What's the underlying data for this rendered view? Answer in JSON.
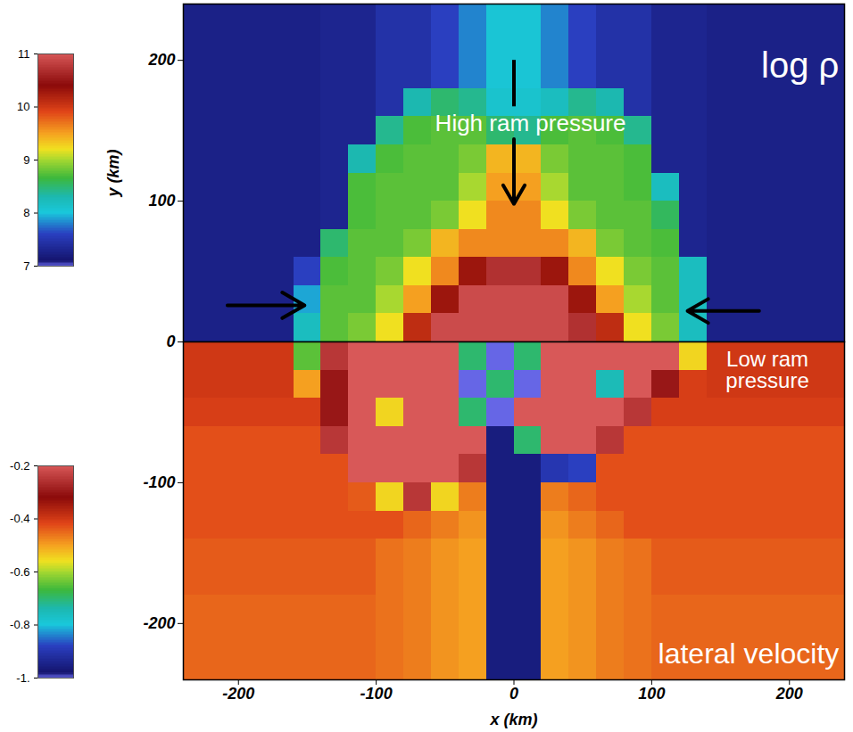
{
  "chart_data": [
    {
      "type": "heatmap",
      "annotations": [
        "log ρ",
        "High ram pressure"
      ],
      "ylabel": "y (km)",
      "xlim": [
        -240,
        240
      ],
      "ylim": [
        0,
        240
      ],
      "yticks": [
        0,
        100,
        200
      ],
      "tick_labels": "y",
      "x_edges": [
        -240,
        -220,
        -200,
        -180,
        -160,
        -140,
        -120,
        -100,
        -80,
        -60,
        -40,
        -20,
        0,
        20,
        40,
        60,
        80,
        100,
        120,
        140,
        160,
        180,
        200,
        220,
        240
      ],
      "y_edges": [
        0,
        20,
        40,
        60,
        80,
        100,
        120,
        140,
        160,
        180,
        200,
        220,
        240
      ],
      "values": [
        [
          7.25,
          7.25,
          7.25,
          7.25,
          8.2,
          8.75,
          8.85,
          9.2,
          10.1,
          10.9,
          10.9,
          10.9,
          10.9,
          10.9,
          10.7,
          10.1,
          9.2,
          8.85,
          8.2,
          7.25,
          7.25,
          7.25,
          7.25,
          7.25
        ],
        [
          7.25,
          7.25,
          7.25,
          7.25,
          7.9,
          8.75,
          8.75,
          9.0,
          9.5,
          10.3,
          10.9,
          10.9,
          10.9,
          10.9,
          10.3,
          9.5,
          9.0,
          8.75,
          8.2,
          7.25,
          7.25,
          7.25,
          7.25,
          7.25
        ],
        [
          7.25,
          7.25,
          7.25,
          7.25,
          7.6,
          8.7,
          8.75,
          8.85,
          9.2,
          9.6,
          10.3,
          10.7,
          10.7,
          10.3,
          9.6,
          9.2,
          8.85,
          8.75,
          8.2,
          7.25,
          7.25,
          7.25,
          7.25,
          7.25
        ],
        [
          7.25,
          7.25,
          7.25,
          7.25,
          7.25,
          8.5,
          8.75,
          8.75,
          8.85,
          9.4,
          9.6,
          9.6,
          9.6,
          9.6,
          9.4,
          8.85,
          8.75,
          8.7,
          7.3,
          7.25,
          7.25,
          7.25,
          7.25,
          7.25
        ],
        [
          7.25,
          7.25,
          7.25,
          7.25,
          7.25,
          7.3,
          8.7,
          8.75,
          8.75,
          8.85,
          9.2,
          9.6,
          9.6,
          9.2,
          8.85,
          8.75,
          8.75,
          8.55,
          7.3,
          7.25,
          7.25,
          7.25,
          7.25,
          7.25
        ],
        [
          7.25,
          7.25,
          7.25,
          7.25,
          7.25,
          7.3,
          8.7,
          8.75,
          8.75,
          8.75,
          9.0,
          9.5,
          9.5,
          9.0,
          8.75,
          8.75,
          8.7,
          8.2,
          7.3,
          7.25,
          7.25,
          7.25,
          7.25,
          7.25
        ],
        [
          7.25,
          7.25,
          7.25,
          7.25,
          7.25,
          7.3,
          8.3,
          8.7,
          8.75,
          8.75,
          8.85,
          9.4,
          9.4,
          8.85,
          8.75,
          8.75,
          8.7,
          7.3,
          7.3,
          7.25,
          7.25,
          7.25,
          7.25,
          7.25
        ],
        [
          7.25,
          7.25,
          7.25,
          7.25,
          7.25,
          7.3,
          7.3,
          8.4,
          8.7,
          8.75,
          8.75,
          8.5,
          8.4,
          8.7,
          8.75,
          8.7,
          8.4,
          7.3,
          7.3,
          7.25,
          7.25,
          7.25,
          7.25,
          7.25
        ],
        [
          7.25,
          7.25,
          7.25,
          7.25,
          7.25,
          7.3,
          7.3,
          7.45,
          8.3,
          8.5,
          8.4,
          8.1,
          8.1,
          8.2,
          8.4,
          8.3,
          7.45,
          7.3,
          7.3,
          7.25,
          7.25,
          7.25,
          7.25,
          7.25
        ],
        [
          7.25,
          7.25,
          7.25,
          7.25,
          7.25,
          7.3,
          7.3,
          7.45,
          7.45,
          7.6,
          7.8,
          8.05,
          8.05,
          7.8,
          7.6,
          7.45,
          7.45,
          7.3,
          7.3,
          7.25,
          7.25,
          7.25,
          7.25,
          7.25
        ],
        [
          7.25,
          7.25,
          7.25,
          7.25,
          7.25,
          7.3,
          7.3,
          7.45,
          7.45,
          7.6,
          7.8,
          8.05,
          8.05,
          7.8,
          7.6,
          7.45,
          7.45,
          7.3,
          7.3,
          7.25,
          7.25,
          7.25,
          7.25,
          7.25
        ],
        [
          7.25,
          7.25,
          7.25,
          7.25,
          7.25,
          7.3,
          7.3,
          7.45,
          7.45,
          7.6,
          7.8,
          8.05,
          8.05,
          7.8,
          7.6,
          7.45,
          7.45,
          7.3,
          7.3,
          7.25,
          7.25,
          7.25,
          7.25,
          7.25
        ]
      ],
      "colorbar": {
        "range": [
          7,
          11
        ],
        "ticks": [
          7,
          8,
          9,
          10,
          11
        ]
      }
    },
    {
      "type": "heatmap",
      "annotations": [
        "Low ram pressure",
        "lateral velocity"
      ],
      "xlabel": "x (km)",
      "xlim": [
        -240,
        240
      ],
      "ylim": [
        -240,
        0
      ],
      "xticks": [
        -200,
        -100,
        0,
        100,
        200
      ],
      "yticks": [
        -200,
        -100
      ],
      "x_edges": [
        -240,
        -220,
        -200,
        -180,
        -160,
        -140,
        -120,
        -100,
        -80,
        -60,
        -40,
        -20,
        0,
        20,
        40,
        60,
        80,
        100,
        120,
        140,
        160,
        180,
        200,
        220,
        240
      ],
      "y_edges": [
        -240,
        -220,
        -200,
        -180,
        -160,
        -140,
        -120,
        -100,
        -80,
        -60,
        -40,
        -20,
        0
      ],
      "values": [
        [
          -0.45,
          -0.45,
          -0.45,
          -0.45,
          -0.45,
          -0.45,
          -0.45,
          -0.46,
          -0.47,
          -0.49,
          -0.5,
          -0.96,
          -0.96,
          -0.5,
          -0.49,
          -0.47,
          -0.46,
          -0.45,
          -0.45,
          -0.45,
          -0.45,
          -0.45,
          -0.45,
          -0.45
        ],
        [
          -0.45,
          -0.45,
          -0.45,
          -0.45,
          -0.45,
          -0.45,
          -0.45,
          -0.46,
          -0.47,
          -0.49,
          -0.5,
          -0.96,
          -0.96,
          -0.5,
          -0.49,
          -0.47,
          -0.46,
          -0.45,
          -0.45,
          -0.45,
          -0.45,
          -0.45,
          -0.45,
          -0.45
        ],
        [
          -0.45,
          -0.45,
          -0.45,
          -0.45,
          -0.45,
          -0.45,
          -0.45,
          -0.46,
          -0.47,
          -0.49,
          -0.5,
          -0.96,
          -0.96,
          -0.5,
          -0.49,
          -0.47,
          -0.46,
          -0.45,
          -0.45,
          -0.45,
          -0.45,
          -0.45,
          -0.45,
          -0.45
        ],
        [
          -0.44,
          -0.44,
          -0.44,
          -0.44,
          -0.44,
          -0.44,
          -0.44,
          -0.46,
          -0.47,
          -0.49,
          -0.5,
          -0.96,
          -0.96,
          -0.5,
          -0.49,
          -0.47,
          -0.46,
          -0.44,
          -0.44,
          -0.44,
          -0.44,
          -0.44,
          -0.44,
          -0.44
        ],
        [
          -0.44,
          -0.44,
          -0.44,
          -0.44,
          -0.44,
          -0.44,
          -0.44,
          -0.46,
          -0.47,
          -0.49,
          -0.5,
          -0.96,
          -0.96,
          -0.5,
          -0.49,
          -0.47,
          -0.46,
          -0.44,
          -0.44,
          -0.44,
          -0.44,
          -0.44,
          -0.44,
          -0.44
        ],
        [
          -0.43,
          -0.43,
          -0.43,
          -0.43,
          -0.43,
          -0.43,
          -0.43,
          -0.43,
          -0.45,
          -0.47,
          -0.49,
          -0.96,
          -0.96,
          -0.49,
          -0.47,
          -0.45,
          -0.43,
          -0.43,
          -0.43,
          -0.43,
          -0.43,
          -0.43,
          -0.43,
          -0.43
        ],
        [
          -0.43,
          -0.43,
          -0.43,
          -0.43,
          -0.43,
          -0.43,
          -0.44,
          -0.55,
          -0.25,
          -0.55,
          -0.47,
          -0.96,
          -0.96,
          -0.47,
          -0.45,
          -0.43,
          -0.43,
          -0.43,
          -0.43,
          -0.43,
          -0.43,
          -0.43,
          -0.43,
          -0.43
        ],
        [
          -0.43,
          -0.43,
          -0.43,
          -0.43,
          -0.43,
          -0.43,
          -0.2,
          -0.2,
          -0.2,
          -0.2,
          -0.25,
          -0.96,
          -0.96,
          -0.9,
          -0.88,
          -0.43,
          -0.43,
          -0.43,
          -0.43,
          -0.43,
          -0.43,
          -0.43,
          -0.43,
          -0.43
        ],
        [
          -0.43,
          -0.43,
          -0.43,
          -0.43,
          -0.43,
          -0.25,
          -0.2,
          -0.2,
          -0.2,
          -0.2,
          -0.2,
          -0.96,
          -0.7,
          -0.2,
          -0.2,
          -0.25,
          -0.43,
          -0.43,
          -0.43,
          -0.43,
          -0.43,
          -0.43,
          -0.43,
          -0.43
        ],
        [
          -0.41,
          -0.41,
          -0.41,
          -0.41,
          -0.41,
          -0.3,
          -0.2,
          -0.55,
          -0.2,
          -0.2,
          -0.7,
          -1,
          -0.2,
          -0.2,
          -0.2,
          -0.2,
          -0.25,
          -0.41,
          -0.41,
          -0.41,
          -0.41,
          -0.41,
          -0.41,
          -0.41
        ],
        [
          -0.4,
          -0.4,
          -0.4,
          -0.4,
          -0.5,
          -0.3,
          -0.2,
          -0.2,
          -0.2,
          -0.2,
          -1,
          -0.7,
          -1,
          -0.2,
          -0.2,
          -0.75,
          -0.2,
          -0.3,
          -0.41,
          -0.4,
          -0.4,
          -0.4,
          -0.4,
          -0.4
        ],
        [
          -0.4,
          -0.4,
          -0.4,
          -0.4,
          -0.65,
          -0.25,
          -0.2,
          -0.2,
          -0.2,
          -0.2,
          -0.7,
          -1,
          -0.7,
          -0.2,
          -0.2,
          -0.2,
          -0.2,
          -0.2,
          -0.55,
          -0.4,
          -0.4,
          -0.4,
          -0.4,
          -0.4
        ]
      ],
      "colorbar": {
        "range": [
          -1,
          -0.2
        ],
        "ticks": [
          {
            "value": -1,
            "label": "-1."
          },
          -0.8,
          -0.6,
          -0.4,
          -0.2
        ]
      }
    }
  ]
}
